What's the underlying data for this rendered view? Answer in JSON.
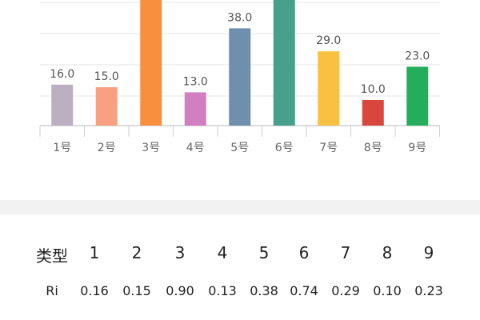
{
  "chart_data": {
    "type": "bar",
    "categories": [
      "1号",
      "2号",
      "3号",
      "4号",
      "5号",
      "6号",
      "7号",
      "8号",
      "9号"
    ],
    "values": [
      16.0,
      15.0,
      90.0,
      13.0,
      38.0,
      74.0,
      29.0,
      10.0,
      23.0
    ],
    "value_labels": [
      "16.0",
      "15.0",
      "",
      "13.0",
      "38.0",
      "",
      "29.0",
      "10.0",
      "23.0"
    ],
    "colors": [
      "#bcafc2",
      "#f9a083",
      "#f78f3e",
      "#d17fc0",
      "#6e8fae",
      "#46a08c",
      "#f9c042",
      "#d8463e",
      "#22ae5a"
    ],
    "title": "",
    "xlabel": "",
    "ylabel": "",
    "grid": true
  },
  "table": {
    "header_label": "类型",
    "headers": [
      "1",
      "2",
      "3",
      "4",
      "5",
      "6",
      "7",
      "8",
      "9"
    ],
    "ri_label": "Ri",
    "ri_values": [
      "0.16",
      "0.15",
      "0.90",
      "0.13",
      "0.38",
      "0.74",
      "0.29",
      "0.10",
      "0.23"
    ]
  }
}
